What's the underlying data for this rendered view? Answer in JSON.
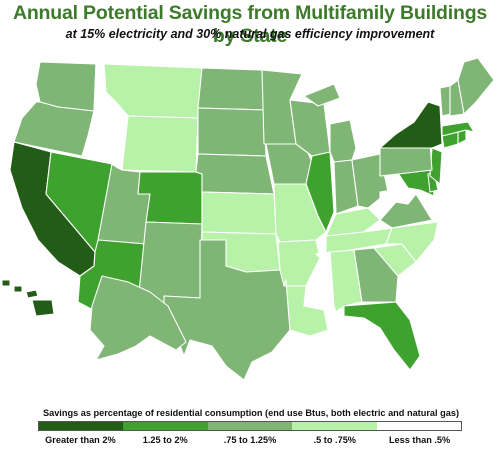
{
  "header": {
    "title": "Annual Potential Savings from Multifamily Buildings by State",
    "subtitle": "at 15% electricity and 30% natural gas efficiency improvement"
  },
  "legend": {
    "title": "Savings as percentage of residential consumption (end use Btus, both electric and natural gas)",
    "categories": [
      {
        "label": "Greater than 2%",
        "color": "#225c16"
      },
      {
        "label": "1.25 to 2%",
        "color": "#3fa22e"
      },
      {
        "label": ".75 to 1.25%",
        "color": "#7fb575"
      },
      {
        "label": ".5 to .75%",
        "color": "#b8f2a8"
      },
      {
        "label": "Less than .5%",
        "color": "#ffffff"
      }
    ]
  },
  "map_data": {
    "states": {
      "WA": 2,
      "OR": 2,
      "CA": 0,
      "NV": 1,
      "ID": 4,
      "MT": 3,
      "WY": 3,
      "UT": 2,
      "AZ": 1,
      "CO": 1,
      "NM": 2,
      "ND": 2,
      "SD": 2,
      "NE": 2,
      "KS": 3,
      "OK": 3,
      "TX": 2,
      "MN": 2,
      "IA": 2,
      "MO": 3,
      "AR": 3,
      "LA": 3,
      "WI": 2,
      "IL": 1,
      "MI": 2,
      "IN": 2,
      "OH": 2,
      "KY": 3,
      "TN": 3,
      "MS": 4,
      "AL": 3,
      "GA": 2,
      "FL": 1,
      "SC": 3,
      "NC": 3,
      "VA": 2,
      "WV": 4,
      "MD": 1,
      "DE": 1,
      "NJ": 1,
      "PA": 2,
      "NY": 0,
      "CT": 1,
      "RI": 1,
      "MA": 1,
      "VT": 2,
      "NH": 2,
      "ME": 2,
      "AK": 2,
      "HI": 0
    }
  }
}
